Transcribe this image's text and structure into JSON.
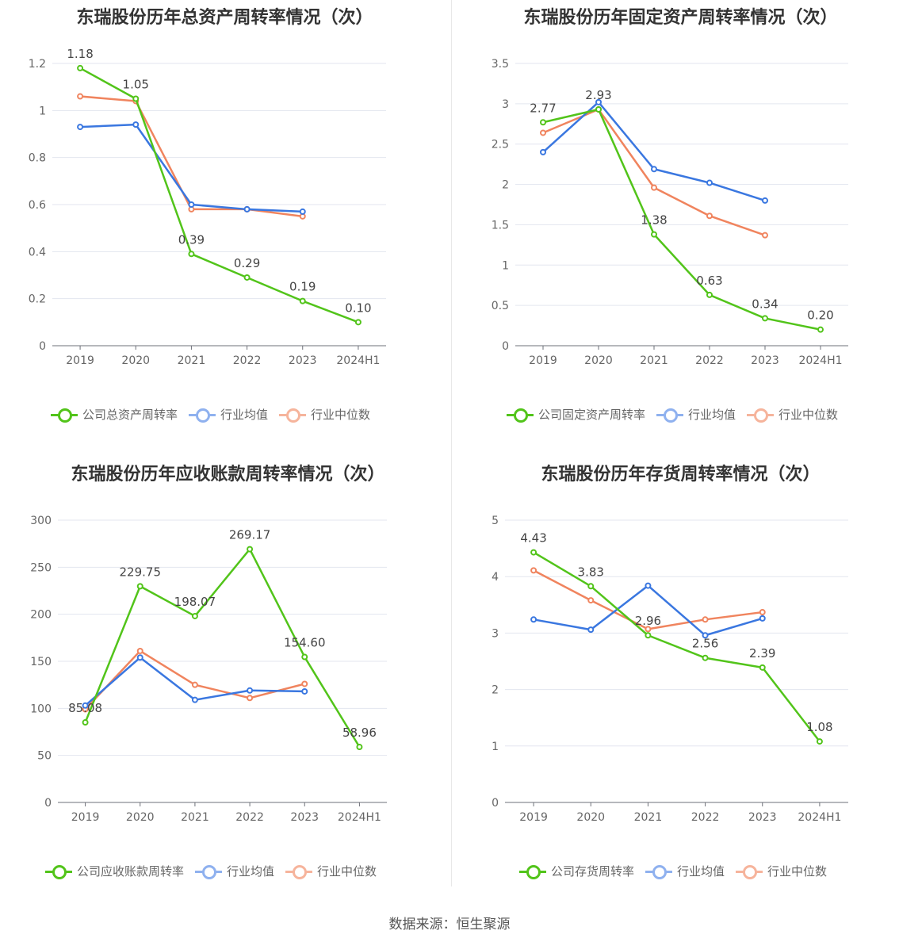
{
  "colors": {
    "company": "#52c41a",
    "avg": "#3a77e0",
    "median": "#f0845e",
    "avg_legend": "#8fb1ef",
    "median_legend": "#f6b49c"
  },
  "footer": "数据来源：恒生聚源",
  "charts": [
    {
      "title": "东瑞股份历年总资产周转率情况（次）",
      "legend": [
        "公司总资产周转率",
        "行业均值",
        "行业中位数"
      ],
      "chart_data": {
        "type": "line",
        "categories": [
          "2019",
          "2020",
          "2021",
          "2022",
          "2023",
          "2024H1"
        ],
        "ylim": [
          0,
          1.2
        ],
        "yticks": [
          0,
          0.2,
          0.4,
          0.6,
          0.8,
          1,
          1.2
        ],
        "ytick_labels": [
          "0",
          "0.2",
          "0.4",
          "0.6",
          "0.8",
          "1",
          "1.2"
        ],
        "series": [
          {
            "name": "公司总资产周转率",
            "values": [
              1.18,
              1.05,
              0.39,
              0.29,
              0.19,
              0.1
            ],
            "labels": [
              "1.18",
              "1.05",
              "0.39",
              "0.29",
              "0.19",
              "0.10"
            ]
          },
          {
            "name": "行业均值",
            "values": [
              0.93,
              0.94,
              0.6,
              0.58,
              0.57,
              null
            ]
          },
          {
            "name": "行业中位数",
            "values": [
              1.06,
              1.04,
              0.58,
              0.58,
              0.55,
              null
            ]
          }
        ]
      }
    },
    {
      "title": "东瑞股份历年固定资产周转率情况（次）",
      "legend": [
        "公司固定资产周转率",
        "行业均值",
        "行业中位数"
      ],
      "chart_data": {
        "type": "line",
        "categories": [
          "2019",
          "2020",
          "2021",
          "2022",
          "2023",
          "2024H1"
        ],
        "ylim": [
          0,
          3.5
        ],
        "yticks": [
          0,
          0.5,
          1,
          1.5,
          2,
          2.5,
          3,
          3.5
        ],
        "ytick_labels": [
          "0",
          "0.5",
          "1",
          "1.5",
          "2",
          "2.5",
          "3",
          "3.5"
        ],
        "series": [
          {
            "name": "公司固定资产周转率",
            "values": [
              2.77,
              2.93,
              1.38,
              0.63,
              0.34,
              0.2
            ],
            "labels": [
              "2.77",
              "2.93",
              "1.38",
              "0.63",
              "0.34",
              "0.20"
            ]
          },
          {
            "name": "行业均值",
            "values": [
              2.4,
              3.02,
              2.19,
              2.02,
              1.8,
              null
            ]
          },
          {
            "name": "行业中位数",
            "values": [
              2.64,
              2.93,
              1.96,
              1.61,
              1.37,
              null
            ]
          }
        ]
      }
    },
    {
      "title": "东瑞股份历年应收账款周转率情况（次）",
      "legend": [
        "公司应收账款周转率",
        "行业均值",
        "行业中位数"
      ],
      "chart_data": {
        "type": "line",
        "categories": [
          "2019",
          "2020",
          "2021",
          "2022",
          "2023",
          "2024H1"
        ],
        "ylim": [
          0,
          300
        ],
        "yticks": [
          0,
          50,
          100,
          150,
          200,
          250,
          300
        ],
        "ytick_labels": [
          "0",
          "50",
          "100",
          "150",
          "200",
          "250",
          "300"
        ],
        "series": [
          {
            "name": "公司应收账款周转率",
            "values": [
              85.08,
              229.75,
              198.07,
              269.17,
              154.6,
              58.96
            ],
            "labels": [
              "85.08",
              "229.75",
              "198.07",
              "269.17",
              "154.60",
              "58.96"
            ]
          },
          {
            "name": "行业均值",
            "values": [
              103,
              154,
              109,
              119,
              118,
              null
            ]
          },
          {
            "name": "行业中位数",
            "values": [
              99,
              161,
              125,
              111,
              126,
              null
            ]
          }
        ]
      }
    },
    {
      "title": "东瑞股份历年存货周转率情况（次）",
      "legend": [
        "公司存货周转率",
        "行业均值",
        "行业中位数"
      ],
      "chart_data": {
        "type": "line",
        "categories": [
          "2019",
          "2020",
          "2021",
          "2022",
          "2023",
          "2024H1"
        ],
        "ylim": [
          0,
          5
        ],
        "yticks": [
          0,
          1,
          2,
          3,
          4,
          5
        ],
        "ytick_labels": [
          "0",
          "1",
          "2",
          "3",
          "4",
          "5"
        ],
        "series": [
          {
            "name": "公司存货周转率",
            "values": [
              4.43,
              3.83,
              2.96,
              2.56,
              2.39,
              1.08
            ],
            "labels": [
              "4.43",
              "3.83",
              "2.96",
              "2.56",
              "2.39",
              "1.08"
            ]
          },
          {
            "name": "行业均值",
            "values": [
              3.24,
              3.06,
              3.84,
              2.96,
              3.26,
              null
            ]
          },
          {
            "name": "行业中位数",
            "values": [
              4.11,
              3.58,
              3.07,
              3.24,
              3.37,
              null
            ]
          }
        ]
      }
    }
  ]
}
